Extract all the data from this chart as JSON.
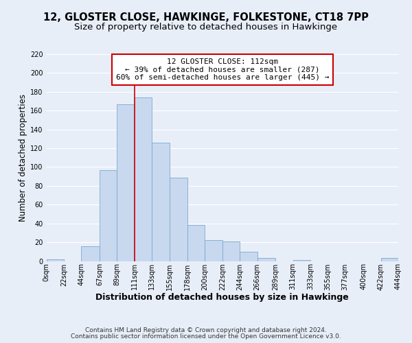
{
  "title": "12, GLOSTER CLOSE, HAWKINGE, FOLKESTONE, CT18 7PP",
  "subtitle": "Size of property relative to detached houses in Hawkinge",
  "xlabel": "Distribution of detached houses by size in Hawkinge",
  "ylabel": "Number of detached properties",
  "bar_color": "#c8d8ee",
  "bar_edge_color": "#7aaad0",
  "background_color": "#e8eef8",
  "grid_color": "#ffffff",
  "bin_edges": [
    0,
    22,
    44,
    67,
    89,
    111,
    133,
    155,
    178,
    200,
    222,
    244,
    266,
    289,
    311,
    333,
    355,
    377,
    400,
    422,
    444
  ],
  "heights": [
    2,
    0,
    16,
    97,
    167,
    174,
    126,
    89,
    38,
    22,
    21,
    10,
    3,
    0,
    1,
    0,
    0,
    0,
    0,
    3
  ],
  "tick_labels": [
    "0sqm",
    "22sqm",
    "44sqm",
    "67sqm",
    "89sqm",
    "111sqm",
    "133sqm",
    "155sqm",
    "178sqm",
    "200sqm",
    "222sqm",
    "244sqm",
    "266sqm",
    "289sqm",
    "311sqm",
    "333sqm",
    "355sqm",
    "377sqm",
    "400sqm",
    "422sqm",
    "444sqm"
  ],
  "vline_x": 111,
  "vline_color": "#cc0000",
  "annotation_title": "12 GLOSTER CLOSE: 112sqm",
  "annotation_line1": "← 39% of detached houses are smaller (287)",
  "annotation_line2": "60% of semi-detached houses are larger (445) →",
  "annotation_box_color": "white",
  "annotation_box_edge": "#cc0000",
  "ylim": [
    0,
    220
  ],
  "yticks": [
    0,
    20,
    40,
    60,
    80,
    100,
    120,
    140,
    160,
    180,
    200,
    220
  ],
  "footer1": "Contains HM Land Registry data © Crown copyright and database right 2024.",
  "footer2": "Contains public sector information licensed under the Open Government Licence v3.0.",
  "title_fontsize": 10.5,
  "subtitle_fontsize": 9.5,
  "xlabel_fontsize": 9,
  "ylabel_fontsize": 8.5,
  "tick_fontsize": 7,
  "annotation_fontsize": 8,
  "footer_fontsize": 6.5
}
